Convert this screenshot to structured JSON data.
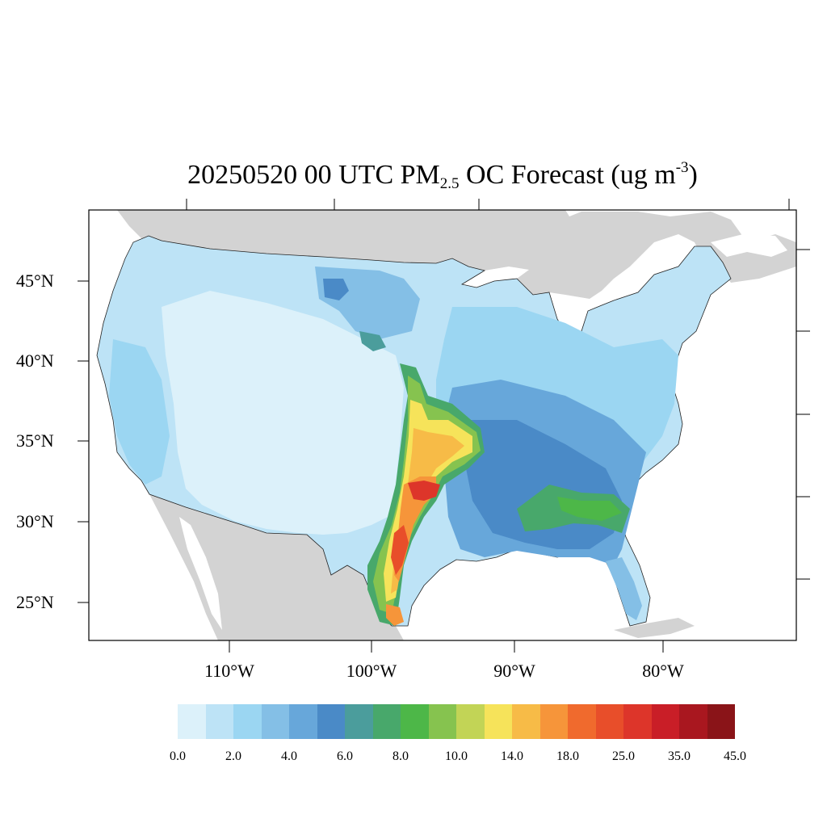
{
  "title": {
    "pre": "20250520 00 UTC PM",
    "sub": "2.5",
    "mid": " OC Forecast (ug m",
    "sup": "-3",
    "post": ")"
  },
  "lat_labels": [
    "45°N",
    "40°N",
    "35°N",
    "30°N",
    "25°N"
  ],
  "lon_labels": [
    "110°W",
    "100°W",
    "90°W",
    "80°W"
  ],
  "colorbar": {
    "colors": [
      "#dcf1fa",
      "#bde3f6",
      "#9bd6f2",
      "#84bfe6",
      "#67a7da",
      "#4a8ac7",
      "#4b9d9c",
      "#48a86b",
      "#4db748",
      "#86c34f",
      "#c2d456",
      "#f6e35a",
      "#f7bb47",
      "#f6953a",
      "#f06a2d",
      "#e84e2a",
      "#dd352a",
      "#c91e27",
      "#a9171f",
      "#8a1418"
    ],
    "labels": [
      "0.0",
      "2.0",
      "4.0",
      "6.0",
      "8.0",
      "10.0",
      "14.0",
      "18.0",
      "25.0",
      "35.0",
      "45.0"
    ]
  },
  "map_colors": {
    "land_outside": "#d3d3d3",
    "water": "#ffffff",
    "low": "#dcf1fa",
    "light": "#bde3f6",
    "mid_light": "#9bd6f2",
    "mid": "#84bfe6",
    "medium": "#67a7da",
    "dark": "#4a8ac7",
    "teal": "#4b9d9c",
    "green": "#48a86b",
    "bright_green": "#4db748",
    "lime": "#86c34f",
    "yellow_green": "#c2d456",
    "yellow": "#f6e35a",
    "orange_light": "#f7bb47",
    "orange": "#f6953a",
    "red_orange": "#f06a2d",
    "red": "#dd352a"
  }
}
